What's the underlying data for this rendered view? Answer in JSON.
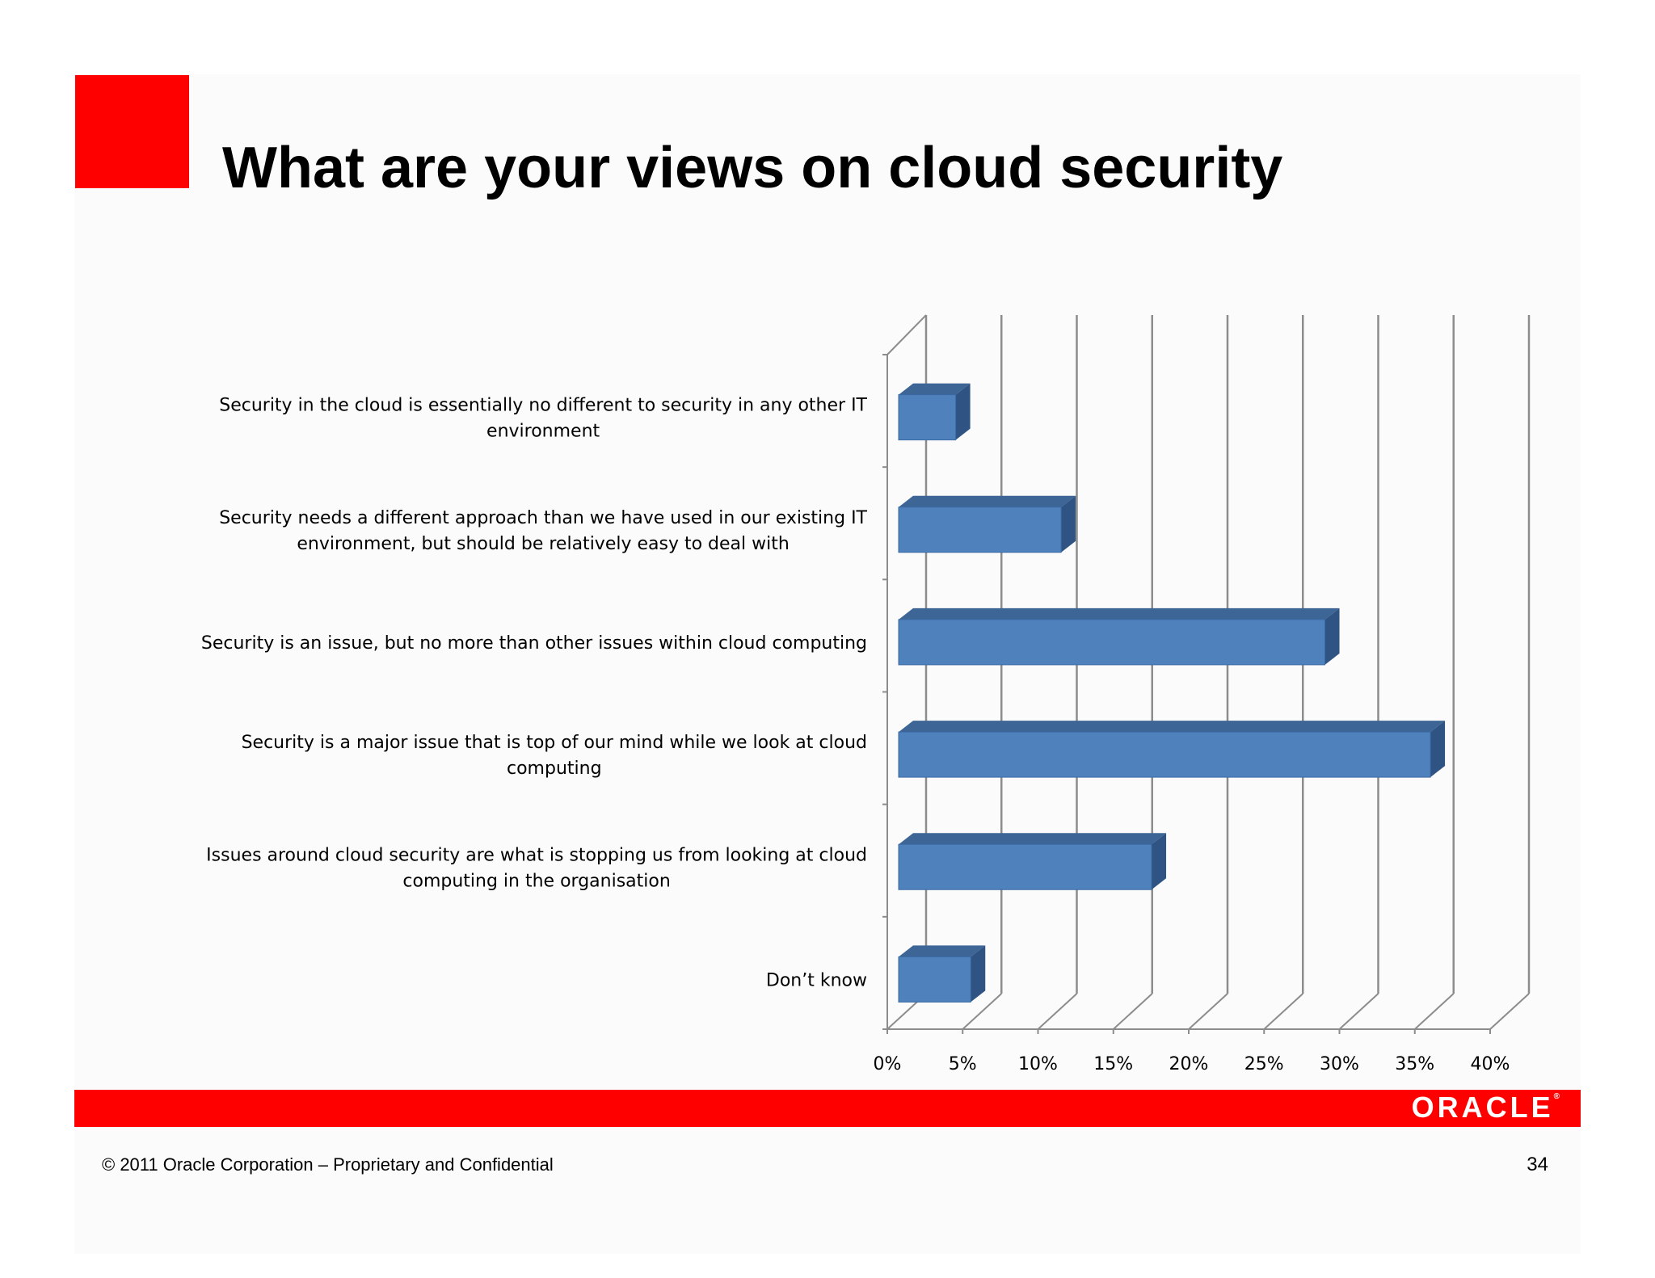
{
  "slide": {
    "title": "What are your views on cloud security",
    "footer": {
      "copyright": "© 2011 Oracle Corporation – Proprietary and Confidential",
      "page_number": "34",
      "logo_text": "ORACLE"
    },
    "colors": {
      "brand_red": "#ff0000",
      "bar_front": "#4f81bd",
      "bar_top": "#3d6596",
      "bar_side": "#2f5483"
    }
  },
  "chart_data": {
    "type": "bar",
    "orientation": "horizontal",
    "style": "3d",
    "categories": [
      "Security in the cloud is essentially no different to security in any other IT environment",
      "Security needs a different approach than we have used in our existing IT environment, but should be relatively easy to deal with",
      "Security is an issue, but no more than other issues within cloud computing",
      "Security is a major issue that is top of our mind while we look at cloud computing",
      "Issues around cloud security are what is stopping us from looking at cloud computing in the organisation",
      "Don’t know"
    ],
    "category_label_lines": [
      [
        "Security in the cloud is essentially no different to security in any other IT",
        "environment"
      ],
      [
        "Security needs a different approach than we have used in our existing IT",
        "environment, but should be relatively easy to deal with"
      ],
      [
        "Security is an issue, but no more than other issues within cloud computing"
      ],
      [
        "Security is a major issue that is top of our mind while we look at cloud",
        "computing"
      ],
      [
        "Issues around cloud security are what is stopping us from looking at cloud",
        "computing in the organisation"
      ],
      [
        "Don’t know"
      ]
    ],
    "values": [
      4,
      11,
      28.5,
      35.5,
      17,
      5
    ],
    "unit": "%",
    "xlim": [
      0,
      40
    ],
    "ticks": [
      0,
      5,
      10,
      15,
      20,
      25,
      30,
      35,
      40
    ],
    "tick_labels": [
      "0%",
      "5%",
      "10%",
      "15%",
      "20%",
      "25%",
      "30%",
      "35%",
      "40%"
    ],
    "grid": true,
    "legend": "none"
  }
}
